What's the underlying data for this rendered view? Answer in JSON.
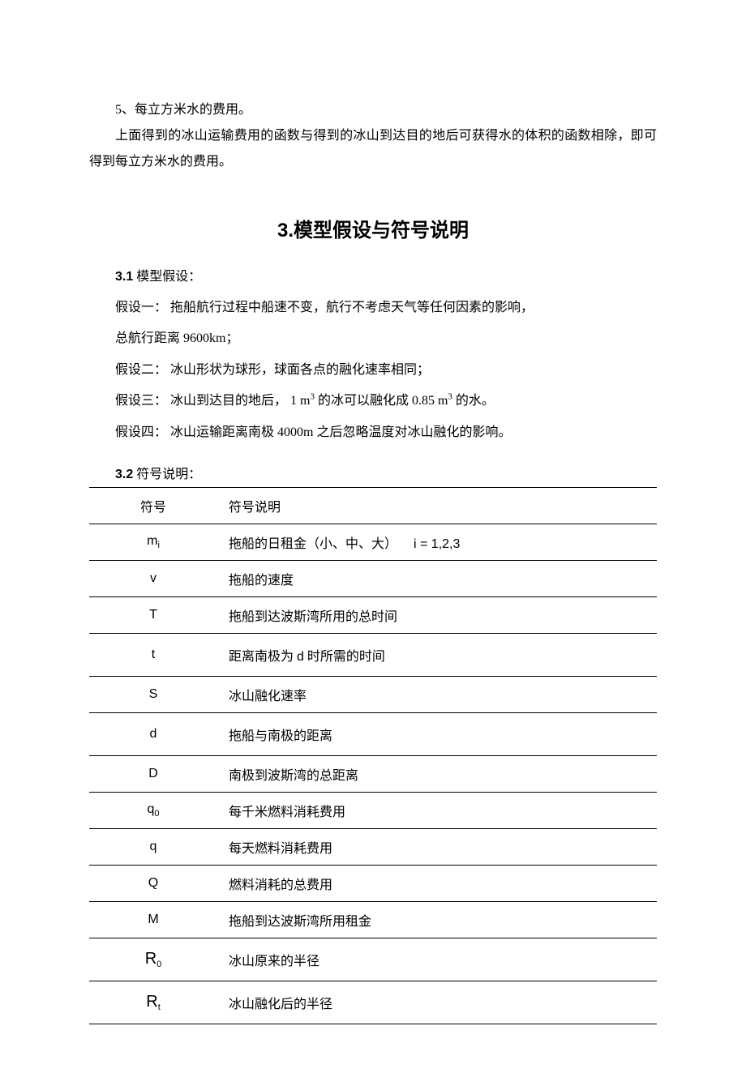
{
  "intro": {
    "line1": "5、每立方米水的费用。",
    "line2": "上面得到的冰山运输费用的函数与得到的冰山到达目的地后可获得水的体积的函数相除，即可得到每立方米水的费用。"
  },
  "section_title_num": "3.",
  "section_title_text": "模型假设与符号说明",
  "sub1_num": "3.1",
  "sub1_text": " 模型假设：",
  "assumptions": {
    "a1a": "假设一： 拖船航行过程中船速不变，航行不考虑天气等任何因素的影响，",
    "a1b": "总航行距离  9600km；",
    "a2": "假设二： 冰山形状为球形，球面各点的融化速率相同；",
    "a3_pre": "假设三： 冰山到达目的地后，   1 m",
    "a3_sup1": "3",
    "a3_mid": " 的冰可以融化成   0.85 m",
    "a3_sup2": "3",
    "a3_post": " 的水。",
    "a4": "假设四： 冰山运输距离南极   4000m 之后忽略温度对冰山融化的影响。"
  },
  "sub2_num": "3.2",
  "sub2_text": " 符号说明：",
  "table": {
    "header_sym": "符号",
    "header_desc": "符号说明",
    "rows": [
      {
        "sym_html": "m<span class='sub'>i</span>",
        "desc_html": "拖船的日租金（小、中、大）&nbsp;&nbsp;&nbsp;&nbsp;&nbsp;<span class='arial'>i = 1,2,3</span>"
      },
      {
        "sym_html": "v",
        "desc_html": "拖船的速度"
      },
      {
        "sym_html": "T",
        "desc_html": "拖船到达波斯湾所用的总时间"
      },
      {
        "sym_html": "t",
        "desc_html": "距离南极为 <span class='arial'>d</span> 时所需的时间",
        "tall": true
      },
      {
        "sym_html": "S",
        "desc_html": "冰山融化速率"
      },
      {
        "sym_html": "d",
        "desc_html": "拖船与南极的距离",
        "tall": true
      },
      {
        "sym_html": "D",
        "desc_html": "南极到波斯湾的总距离"
      },
      {
        "sym_html": "q<span class='sub'>0</span>",
        "desc_html": "每千米燃料消耗费用"
      },
      {
        "sym_html": "q",
        "desc_html": "每天燃料消耗费用"
      },
      {
        "sym_html": "Q",
        "desc_html": "燃料消耗的总费用"
      },
      {
        "sym_html": "M",
        "desc_html": "拖船到达波斯湾所用租金"
      },
      {
        "sym_html": "<span style='font-size:20px'>R</span><span class='sub'>0</span>",
        "desc_html": "冰山原来的半径",
        "tall": true
      },
      {
        "sym_html": "<span style='font-size:20px'>R</span><span class='sub'>t</span>",
        "desc_html": "冰山融化后的半径",
        "tall": true
      }
    ]
  }
}
